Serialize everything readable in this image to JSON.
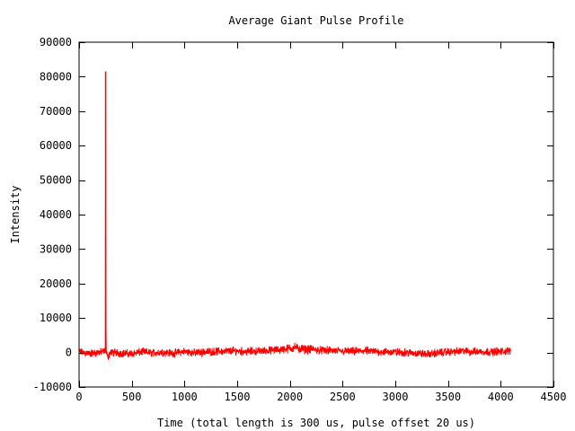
{
  "chart_data": {
    "type": "line",
    "title": "Average Giant Pulse Profile",
    "xlabel": "Time (total length is 300 us, pulse offset 20 us)",
    "ylabel": "Intensity",
    "xlim": [
      0,
      4500
    ],
    "ylim": [
      -10000,
      90000
    ],
    "xticks": [
      0,
      500,
      1000,
      1500,
      2000,
      2500,
      3000,
      3500,
      4000,
      4500
    ],
    "yticks": [
      -10000,
      0,
      10000,
      20000,
      30000,
      40000,
      50000,
      60000,
      70000,
      80000,
      90000
    ],
    "grid": false,
    "line_color": "#ff0000",
    "series": [
      {
        "x": [
          0,
          100,
          200,
          240,
          250,
          252,
          255,
          258,
          260,
          265,
          270,
          300,
          400,
          500,
          600,
          700,
          800,
          900,
          1000,
          1100,
          1200,
          1300,
          1400,
          1500,
          1600,
          1700,
          1800,
          1900,
          2000,
          2050,
          2100,
          2200,
          2300,
          2400,
          2500,
          2600,
          2700,
          2800,
          2900,
          3000,
          3100,
          3200,
          3300,
          3400,
          3500,
          3600,
          3650,
          3700,
          3800,
          3900,
          4000,
          4095
        ],
        "y": [
          200,
          -300,
          100,
          200,
          1000,
          81500,
          11000,
          500,
          -500,
          300,
          -1500,
          100,
          -200,
          -300,
          200,
          -100,
          100,
          -200,
          300,
          -100,
          200,
          300,
          400,
          500,
          300,
          400,
          600,
          800,
          1200,
          1500,
          1000,
          900,
          700,
          500,
          400,
          300,
          500,
          300,
          200,
          100,
          0,
          -200,
          -500,
          -100,
          200,
          300,
          500,
          200,
          300,
          200,
          300,
          500
        ]
      }
    ]
  }
}
